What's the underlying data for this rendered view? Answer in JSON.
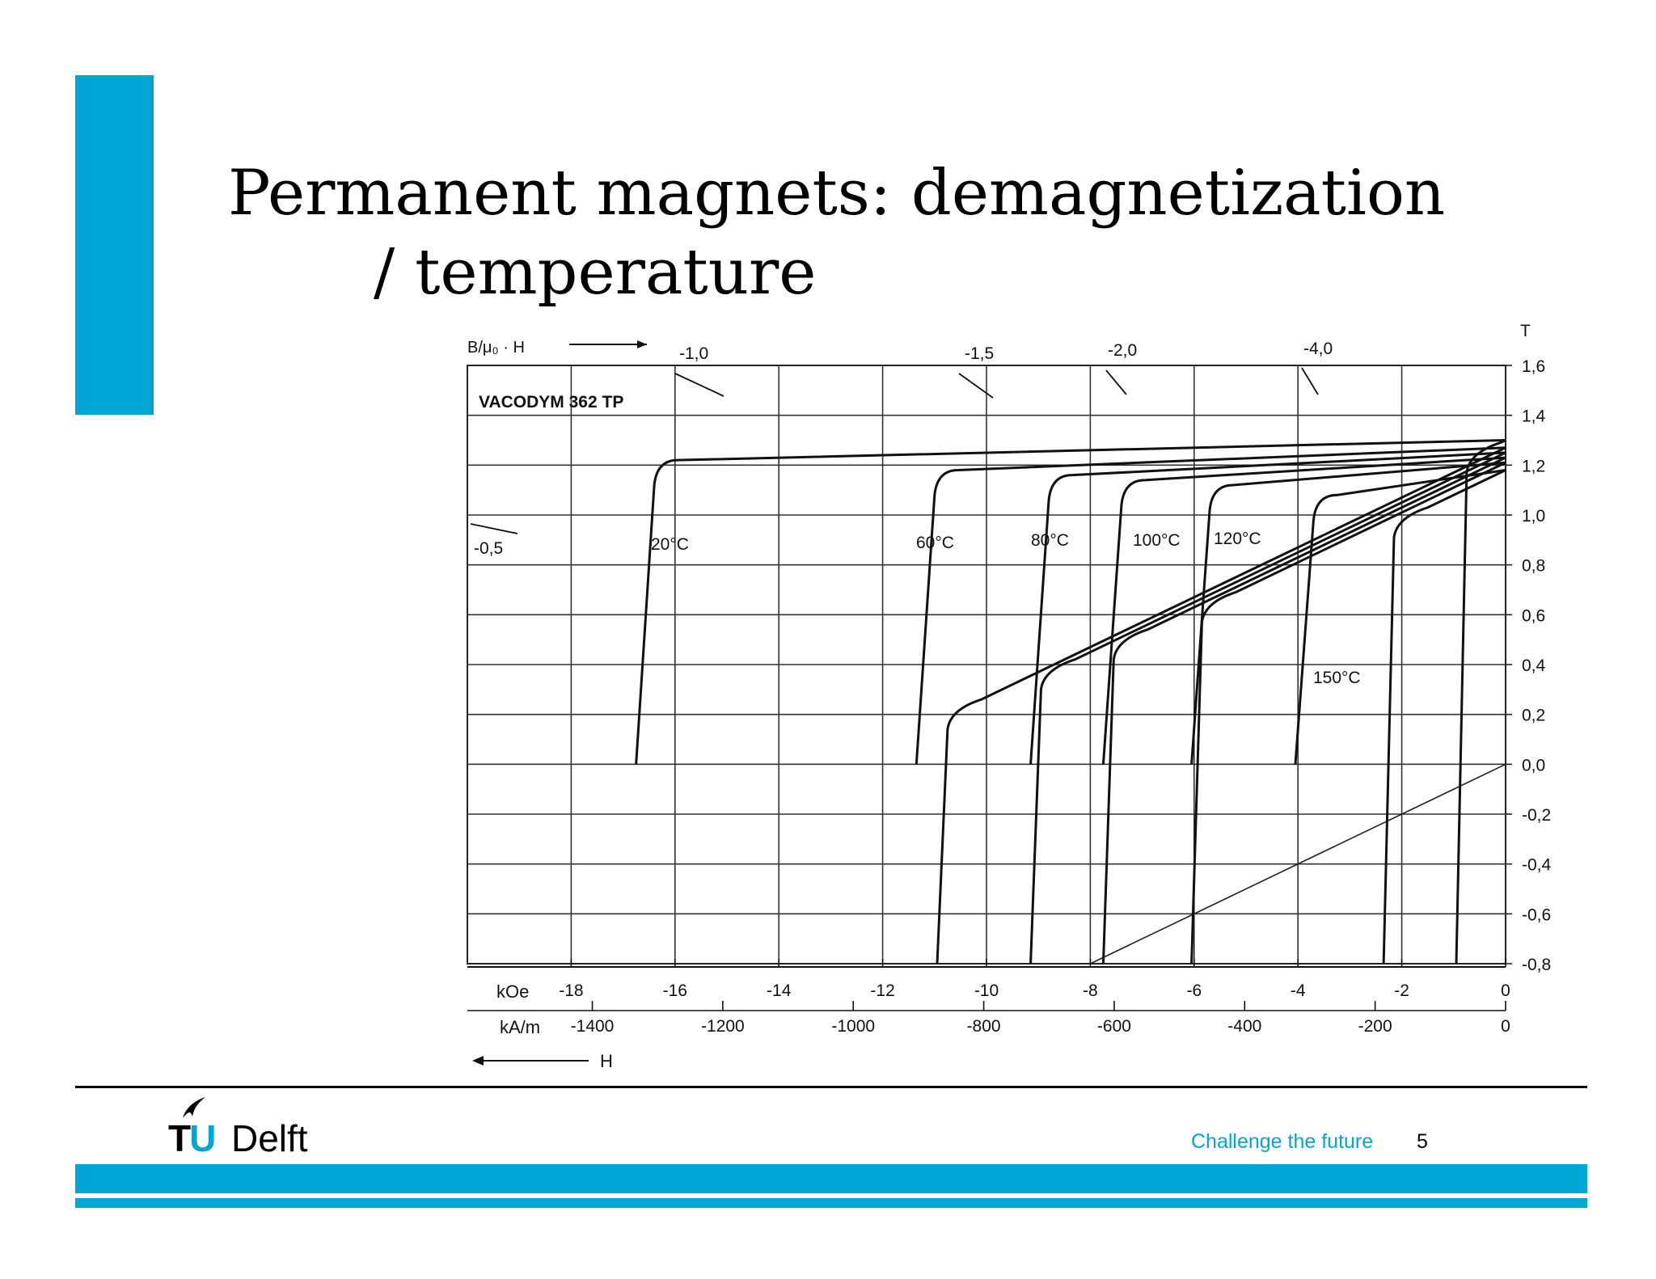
{
  "slide": {
    "title_line1": "Permanent magnets: demagnetization",
    "title_line2": "/ temperature",
    "tagline": "Challenge the future",
    "page_number": "5",
    "logo_tu": "TU",
    "logo_delft": "Delft",
    "accent_color": "#00a6d6"
  },
  "chart_data": {
    "type": "line",
    "title": "VACODYM 362 TP",
    "y_unit": "T",
    "ylim": [
      -0.8,
      1.6
    ],
    "y_ticks": [
      "1,6",
      "1,4",
      "1,2",
      "1,0",
      "0,8",
      "0,6",
      "0,4",
      "0,2",
      "0,0",
      "-0,2",
      "-0,4",
      "-0,6",
      "-0,8"
    ],
    "x_koe_label": "kOe",
    "x_koe_range": [
      -20,
      0
    ],
    "x_koe_ticks": [
      "-18",
      "-16",
      "-14",
      "-12",
      "-10",
      "-8",
      "-6",
      "-4",
      "-2",
      "0"
    ],
    "x_kam_label": "kA/m",
    "x_kam_ticks": [
      "-1400",
      "-1200",
      "-1000",
      "-800",
      "-600",
      "-400",
      "-200",
      "0"
    ],
    "x_arrow_label": "H",
    "permeance_label": "B/μ₀ · H",
    "permeance_lines": [
      {
        "label": "-0,5",
        "ratio": -0.5
      },
      {
        "label": "-1,0",
        "ratio": -1.0
      },
      {
        "label": "-1,5",
        "ratio": -1.5
      },
      {
        "label": "-2,0",
        "ratio": -2.0
      },
      {
        "label": "-4,0",
        "ratio": -4.0
      }
    ],
    "grid": true,
    "series": [
      {
        "name": "20°C",
        "br": 1.3,
        "hcj_koe": -16.6,
        "b_knee": 1.23,
        "j_knee": 1.22
      },
      {
        "name": "60°C",
        "br": 1.27,
        "hcj_koe": -11.2,
        "b_knee": 0.2,
        "j_knee": 1.18
      },
      {
        "name": "80°C",
        "br": 1.25,
        "hcj_koe": -9.0,
        "b_knee": 0.22,
        "j_knee": 1.16
      },
      {
        "name": "100°C",
        "br": 1.23,
        "hcj_koe": -7.6,
        "b_knee": 0.36,
        "j_knee": 1.14
      },
      {
        "name": "120°C",
        "br": 1.21,
        "hcj_koe": -5.9,
        "b_knee": 0.6,
        "j_knee": 1.12
      },
      {
        "name": "150°C",
        "br": 1.18,
        "hcj_koe": -3.9,
        "b_knee": 0.97,
        "j_knee": 1.08
      }
    ]
  }
}
